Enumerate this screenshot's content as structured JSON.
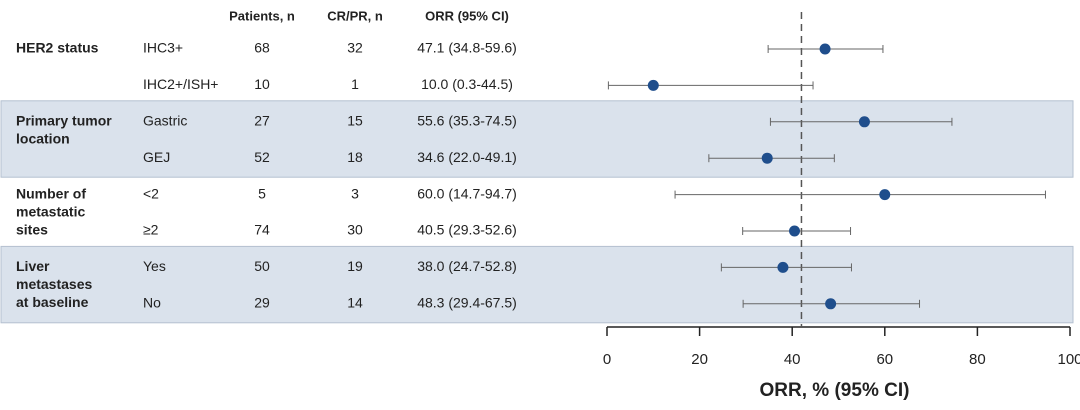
{
  "chart_data": {
    "type": "forest",
    "column_headers": [
      "Patients, n",
      "CR/PR, n",
      "ORR (95% CI)"
    ],
    "groups": [
      {
        "label_lines": [
          "HER2 status"
        ],
        "shaded": false,
        "rows": [
          {
            "name": "IHC3+",
            "patients": 68,
            "responders": 32,
            "orr_label": "47.1 (34.8-59.6)",
            "orr": 47.1,
            "lower": 34.8,
            "upper": 59.6
          },
          {
            "name": "IHC2+/ISH+",
            "patients": 10,
            "responders": 1,
            "orr_label": "10.0 (0.3-44.5)",
            "orr": 10.0,
            "lower": 0.3,
            "upper": 44.5
          }
        ]
      },
      {
        "label_lines": [
          "Primary tumor",
          "location"
        ],
        "shaded": true,
        "rows": [
          {
            "name": "Gastric",
            "patients": 27,
            "responders": 15,
            "orr_label": "55.6 (35.3-74.5)",
            "orr": 55.6,
            "lower": 35.3,
            "upper": 74.5
          },
          {
            "name": "GEJ",
            "patients": 52,
            "responders": 18,
            "orr_label": "34.6 (22.0-49.1)",
            "orr": 34.6,
            "lower": 22.0,
            "upper": 49.1
          }
        ]
      },
      {
        "label_lines": [
          "Number of",
          "metastatic",
          "sites"
        ],
        "shaded": false,
        "rows": [
          {
            "name": "<2",
            "patients": 5,
            "responders": 3,
            "orr_label": "60.0 (14.7-94.7)",
            "orr": 60.0,
            "lower": 14.7,
            "upper": 94.7
          },
          {
            "name": "≥2",
            "patients": 74,
            "responders": 30,
            "orr_label": "40.5 (29.3-52.6)",
            "orr": 40.5,
            "lower": 29.3,
            "upper": 52.6
          }
        ]
      },
      {
        "label_lines": [
          "Liver",
          "metastases",
          "at baseline"
        ],
        "shaded": true,
        "rows": [
          {
            "name": "Yes",
            "patients": 50,
            "responders": 19,
            "orr_label": "38.0 (24.7-52.8)",
            "orr": 38.0,
            "lower": 24.7,
            "upper": 52.8
          },
          {
            "name": "No",
            "patients": 29,
            "responders": 14,
            "orr_label": "48.3 (29.4-67.5)",
            "orr": 48.3,
            "lower": 29.4,
            "upper": 67.5
          }
        ]
      }
    ],
    "reference_line": 42,
    "xlim": [
      0,
      100
    ],
    "xticks": [
      0,
      20,
      40,
      60,
      80,
      100
    ],
    "xlabel": "ORR, % (95% CI)",
    "color": "#1f4e8c"
  }
}
